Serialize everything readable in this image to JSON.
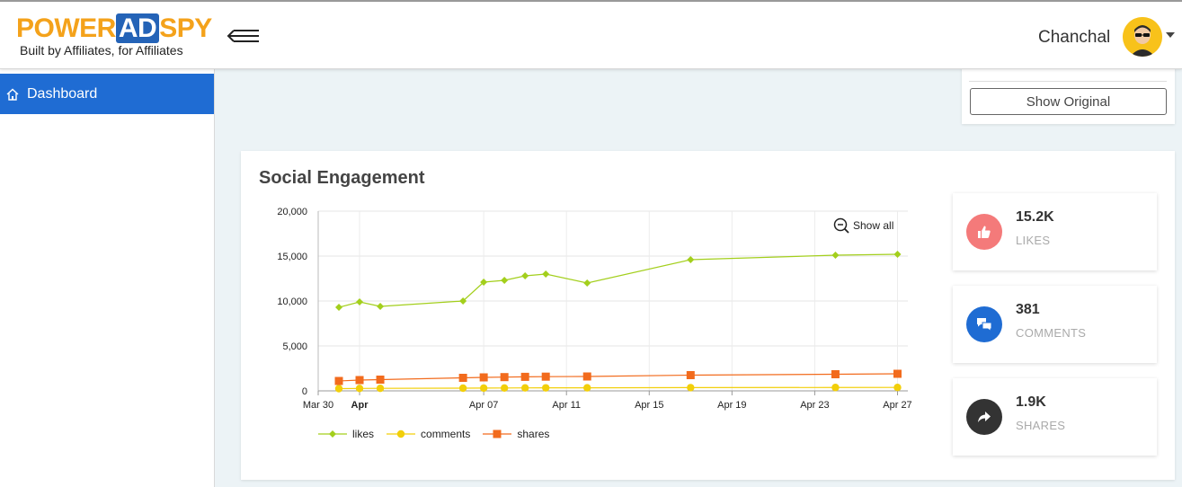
{
  "header": {
    "logo_word_1": "POWER",
    "logo_word_2": "AD",
    "logo_word_3": "SPY",
    "logo_tagline": "Built by Affiliates, for Affiliates",
    "user_name": "Chanchal"
  },
  "sidebar": {
    "items": [
      {
        "label": "Dashboard",
        "icon": "home-icon",
        "active": true
      }
    ]
  },
  "top_card": {
    "button_label": "Show Original"
  },
  "engagement": {
    "title": "Social Engagement",
    "show_all_label": "Show all",
    "stats": [
      {
        "value": "15.2K",
        "label": "LIKES",
        "icon": "thumbs-up-icon",
        "color": "#f47a7a"
      },
      {
        "value": "381",
        "label": "COMMENTS",
        "icon": "comments-icon",
        "color": "#1f6cd3"
      },
      {
        "value": "1.9K",
        "label": "SHARES",
        "icon": "share-icon",
        "color": "#333333"
      }
    ]
  },
  "chart_data": {
    "type": "line",
    "x_tick_labels": [
      "Mar 30",
      "Apr",
      "Apr 07",
      "Apr 11",
      "Apr 15",
      "Apr 19",
      "Apr 23",
      "Apr 27"
    ],
    "y_tick_labels": [
      "0",
      "5,000",
      "10,000",
      "15,000",
      "20,000"
    ],
    "ylim": [
      0,
      20000
    ],
    "grid": true,
    "legend_position": "bottom-left",
    "series": [
      {
        "name": "likes",
        "color": "#a3cf1c",
        "marker": "diamond",
        "points": [
          [
            "2020-03-31",
            9300
          ],
          [
            "2020-04-01",
            9900
          ],
          [
            "2020-04-02",
            9400
          ],
          [
            "2020-04-06",
            10000
          ],
          [
            "2020-04-07",
            12100
          ],
          [
            "2020-04-08",
            12300
          ],
          [
            "2020-04-09",
            12800
          ],
          [
            "2020-04-10",
            13000
          ],
          [
            "2020-04-12",
            12000
          ],
          [
            "2020-04-17",
            14600
          ],
          [
            "2020-04-24",
            15100
          ],
          [
            "2020-04-27",
            15200
          ]
        ]
      },
      {
        "name": "comments",
        "color": "#f2cf0a",
        "marker": "circle",
        "points": [
          [
            "2020-03-31",
            250
          ],
          [
            "2020-04-01",
            270
          ],
          [
            "2020-04-02",
            280
          ],
          [
            "2020-04-06",
            300
          ],
          [
            "2020-04-07",
            310
          ],
          [
            "2020-04-08",
            320
          ],
          [
            "2020-04-09",
            330
          ],
          [
            "2020-04-10",
            335
          ],
          [
            "2020-04-12",
            340
          ],
          [
            "2020-04-17",
            360
          ],
          [
            "2020-04-24",
            375
          ],
          [
            "2020-04-27",
            381
          ]
        ]
      },
      {
        "name": "shares",
        "color": "#f26b1d",
        "marker": "square",
        "points": [
          [
            "2020-03-31",
            1100
          ],
          [
            "2020-04-01",
            1200
          ],
          [
            "2020-04-02",
            1250
          ],
          [
            "2020-04-06",
            1450
          ],
          [
            "2020-04-07",
            1500
          ],
          [
            "2020-04-08",
            1530
          ],
          [
            "2020-04-09",
            1560
          ],
          [
            "2020-04-10",
            1580
          ],
          [
            "2020-04-12",
            1600
          ],
          [
            "2020-04-17",
            1750
          ],
          [
            "2020-04-24",
            1850
          ],
          [
            "2020-04-27",
            1900
          ]
        ]
      }
    ]
  }
}
